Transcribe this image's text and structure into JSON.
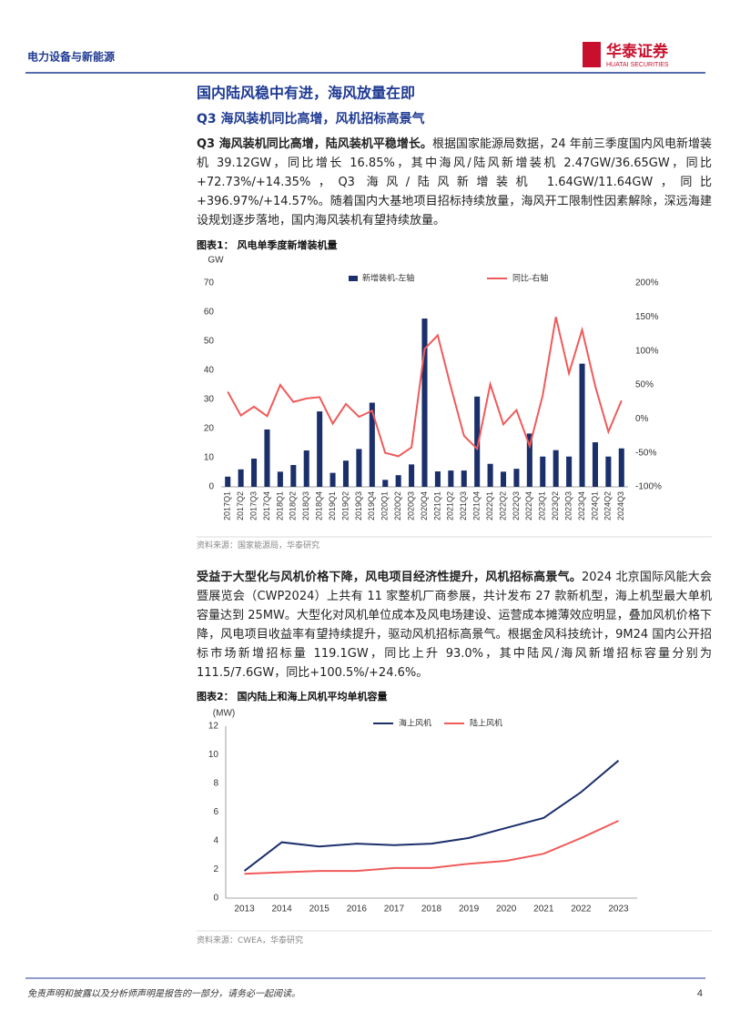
{
  "header": {
    "section": "电力设备与新能源",
    "logo_name": "华泰证券",
    "logo_en": "HUATAI SECURITIES"
  },
  "title": "国内陆风稳中有进，海风放量在即",
  "subtitle": "Q3 海风装机同比高增，风机招标高景气",
  "paragraphs": [
    {
      "lead": "Q3 海风装机同比高增，陆风装机平稳增长。",
      "text": "根据国家能源局数据，24 年前三季度国内风电新增装机 39.12GW，同比增长 16.85%，其中海风/陆风新增装机 2.47GW/36.65GW，同比+72.73%/+14.35%，Q3 海风/陆风新增装机 1.64GW/11.64GW，同比+396.97%/+14.57%。随着国内大基地项目招标持续放量，海风开工限制性因素解除，深远海建设规划逐步落地，国内海风装机有望持续放量。"
    },
    {
      "lead": "受益于大型化与风机价格下降，风电项目经济性提升，风机招标高景气。",
      "text": "2024 北京国际风能大会暨展览会（CWP2024）上共有 11 家整机厂商参展，共计发布 27 款新机型，海上机型最大单机容量达到 25MW。大型化对风机单位成本及风电场建设、运营成本摊薄效应明显，叠加风机价格下降，风电项目收益率有望持续提升，驱动风机招标高景气。根据金风科技统计，9M24 国内公开招标市场新增招标量 119.1GW，同比上升 93.0%，其中陆风/海风新增招标容量分别为 111.5/7.6GW，同比+100.5%/+24.6%。"
    }
  ],
  "chart_data": [
    {
      "type": "combo",
      "label": "图表1：",
      "title": "风电单季度新增装机量",
      "source": "资料来源：国家能源局，华泰研究",
      "y_label": "GW",
      "legend": "top",
      "grid": false,
      "categories": [
        "2017Q1",
        "2017Q2",
        "2017Q3",
        "2017Q4",
        "2018Q1",
        "2018Q2",
        "2018Q3",
        "2018Q4",
        "2019Q1",
        "2019Q2",
        "2019Q3",
        "2019Q4",
        "2020Q1",
        "2020Q2",
        "2020Q3",
        "2020Q4",
        "2021Q1",
        "2021Q2",
        "2021Q3",
        "2021Q4",
        "2022Q1",
        "2022Q2",
        "2022Q3",
        "2022Q4",
        "2023Q1",
        "2023Q2",
        "2023Q3",
        "2023Q4",
        "2024Q1",
        "2024Q2",
        "2024Q3"
      ],
      "ylim": [
        0,
        70
      ],
      "yticks": [
        0,
        10,
        20,
        30,
        40,
        50,
        60,
        70
      ],
      "y2lim": [
        -100,
        200
      ],
      "y2ticks": [
        {
          "value": -100,
          "label": "-100%"
        },
        {
          "value": -50,
          "label": "-50%"
        },
        {
          "value": 0,
          "label": "0%"
        },
        {
          "value": 50,
          "label": "50%"
        },
        {
          "value": 100,
          "label": "100%"
        },
        {
          "value": 150,
          "label": "150%"
        },
        {
          "value": 200,
          "label": "200%"
        }
      ],
      "series": [
        {
          "name": "新增装机-左轴",
          "type": "bar",
          "color": "#1b2f6b",
          "values": [
            3.5,
            6,
            9.7,
            19.7,
            5.2,
            7.5,
            12.5,
            25.9,
            4.8,
            9,
            13,
            28.9,
            2.4,
            4,
            7.7,
            57.8,
            5.3,
            5.6,
            5.6,
            31,
            7.9,
            5.2,
            6.2,
            18.3,
            10.4,
            12.6,
            10.4,
            42.3,
            15.3,
            10.4,
            13.2
          ]
        },
        {
          "name": "同比-右轴",
          "type": "line",
          "axis": "y2",
          "color": "#f05a5a",
          "values": [
            40,
            5,
            18,
            4,
            50,
            25,
            30,
            32,
            -7,
            22,
            3,
            12,
            -50,
            -55,
            -42,
            103,
            123,
            47,
            -25,
            -44,
            51,
            -8,
            13,
            -40,
            35,
            150,
            67,
            131,
            48,
            -19,
            27
          ]
        }
      ]
    },
    {
      "type": "line",
      "label": "图表2：",
      "title": "国内陆上和海上风机平均单机容量",
      "source": "资料来源：CWEA，华泰研究",
      "y_label": "(MW)",
      "legend": "top",
      "grid": false,
      "categories": [
        "2013",
        "2014",
        "2015",
        "2016",
        "2017",
        "2018",
        "2019",
        "2020",
        "2021",
        "2022",
        "2023"
      ],
      "ylim": [
        0,
        12
      ],
      "yticks": [
        0,
        2,
        4,
        6,
        8,
        10,
        12
      ],
      "series": [
        {
          "name": "海上风机",
          "type": "line",
          "color": "#1b2f6b",
          "values": [
            1.9,
            3.9,
            3.6,
            3.8,
            3.7,
            3.8,
            4.2,
            4.9,
            5.6,
            7.4,
            9.6
          ]
        },
        {
          "name": "陆上风机",
          "type": "line",
          "color": "#f05a5a",
          "values": [
            1.7,
            1.8,
            1.9,
            1.9,
            2.1,
            2.1,
            2.4,
            2.6,
            3.1,
            4.2,
            5.4
          ]
        }
      ]
    }
  ],
  "footer": {
    "disclaimer": "免责声明和披露以及分析师声明是报告的一部分，请务必一起阅读。",
    "page": "4"
  }
}
